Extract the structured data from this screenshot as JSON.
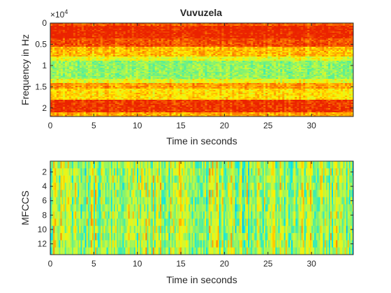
{
  "chart_data": [
    {
      "type": "heatmap",
      "title": "Vuvuzela",
      "xlabel": "Time in seconds",
      "ylabel": "Frequency in Hz",
      "y_exponent": "×10",
      "y_exponent_power": "4",
      "xlim": [
        0,
        34.8
      ],
      "ylim": [
        0,
        2.2
      ],
      "y_reversed": true,
      "x_ticks": [
        0,
        5,
        10,
        15,
        20,
        25,
        30
      ],
      "x_tick_labels": [
        "0",
        "5",
        "10",
        "15",
        "20",
        "25",
        "30"
      ],
      "y_ticks": [
        0,
        0.5,
        1,
        1.5,
        2
      ],
      "y_tick_labels": [
        "0",
        "0.5",
        "1",
        "1.5",
        "2"
      ],
      "colormap": "jet (red = high, yellow-green = mid)",
      "frequency_bands": [
        {
          "from": 0.0,
          "to": 0.05,
          "level": 0.9
        },
        {
          "from": 0.05,
          "to": 0.35,
          "level": 1.0
        },
        {
          "from": 0.35,
          "to": 0.55,
          "level": 0.92
        },
        {
          "from": 0.55,
          "to": 0.78,
          "level": 0.75
        },
        {
          "from": 0.78,
          "to": 0.88,
          "level": 0.63
        },
        {
          "from": 0.88,
          "to": 1.3,
          "level": 0.5
        },
        {
          "from": 1.3,
          "to": 1.42,
          "level": 0.63
        },
        {
          "from": 1.42,
          "to": 1.55,
          "level": 0.8
        },
        {
          "from": 1.55,
          "to": 1.82,
          "level": 0.7
        },
        {
          "from": 1.82,
          "to": 2.1,
          "level": 0.97
        },
        {
          "from": 2.1,
          "to": 2.2,
          "level": 0.78
        }
      ]
    },
    {
      "type": "heatmap",
      "title": "",
      "xlabel": "Time in seconds",
      "ylabel": "MFCCS",
      "xlim": [
        0,
        34.8
      ],
      "ylim": [
        0.5,
        13.5
      ],
      "y_reversed": true,
      "x_ticks": [
        0,
        5,
        10,
        15,
        20,
        25,
        30
      ],
      "x_tick_labels": [
        "0",
        "5",
        "10",
        "15",
        "20",
        "25",
        "30"
      ],
      "y_ticks": [
        2,
        4,
        6,
        8,
        10,
        12
      ],
      "y_tick_labels": [
        "2",
        "4",
        "6",
        "8",
        "10",
        "12"
      ],
      "rows": 13,
      "colormap": "jet (mostly yellow-green, with red, orange and cyan streaks)",
      "typical_level": 0.55
    }
  ]
}
